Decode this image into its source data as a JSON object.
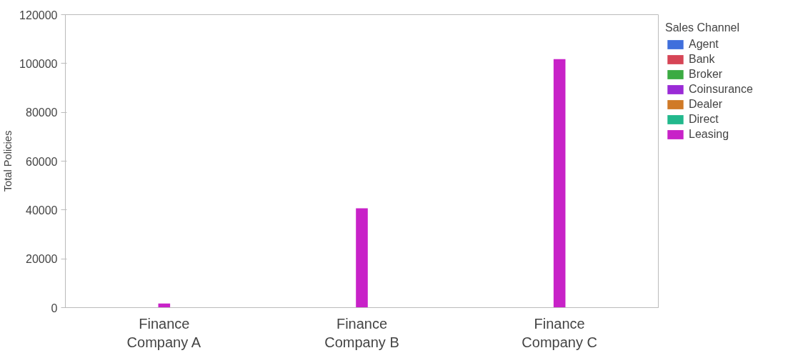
{
  "chart_data": {
    "type": "bar",
    "ylabel": "Total Policies",
    "legend_title": "Sales Channel",
    "legend": "right",
    "categories": [
      "Finance\nCompany A",
      "Finance\nCompany B",
      "Finance\nCompany C"
    ],
    "ylim": [
      0,
      120000
    ],
    "yticks": [
      0,
      20000,
      40000,
      60000,
      80000,
      100000,
      120000
    ],
    "grid": false,
    "series": [
      {
        "name": "Agent",
        "color": "#3f6fdc",
        "values": [
          null,
          null,
          null
        ]
      },
      {
        "name": "Bank",
        "color": "#d64556",
        "values": [
          null,
          null,
          null
        ]
      },
      {
        "name": "Broker",
        "color": "#3bab42",
        "values": [
          null,
          null,
          null
        ]
      },
      {
        "name": "Coinsurance",
        "color": "#9a2bd6",
        "values": [
          null,
          null,
          null
        ]
      },
      {
        "name": "Dealer",
        "color": "#d07a27",
        "values": [
          null,
          null,
          null
        ]
      },
      {
        "name": "Direct",
        "color": "#22b88c",
        "values": [
          null,
          null,
          null
        ]
      },
      {
        "name": "Leasing",
        "color": "#c822c8",
        "values": [
          1700,
          40700,
          101800
        ]
      }
    ]
  }
}
